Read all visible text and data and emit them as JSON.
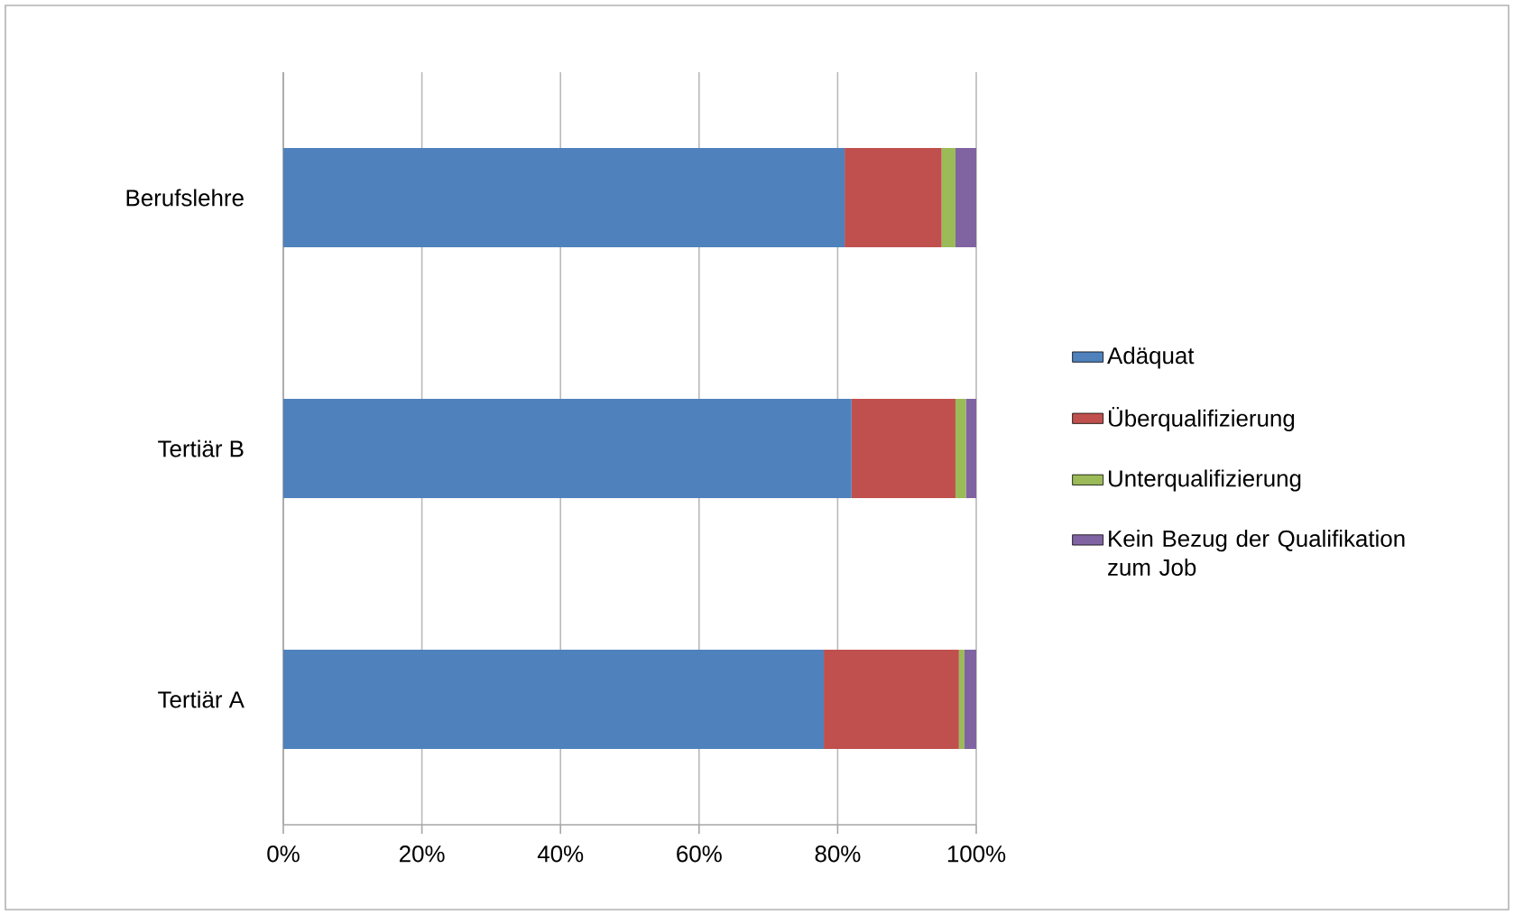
{
  "chart_data": {
    "type": "bar",
    "orientation": "horizontal",
    "stacked": true,
    "categories": [
      "Berufslehre",
      "Tertiär B",
      "Tertiär A"
    ],
    "series": [
      {
        "name": "Adäquat",
        "color": "#4f81bd",
        "values": [
          81,
          82,
          78
        ]
      },
      {
        "name": "Überqualifizierung",
        "color": "#c0504d",
        "values": [
          14,
          15,
          19.5
        ]
      },
      {
        "name": "Unterqualifizierung",
        "color": "#9bbb59",
        "values": [
          2,
          1.5,
          0.8
        ]
      },
      {
        "name": "Kein Bezug der Qualifikation zum Job",
        "color": "#8064a2",
        "values": [
          3,
          1.5,
          1.7
        ]
      }
    ],
    "xlim": [
      0,
      100
    ],
    "xticks": [
      {
        "value": 0,
        "label": "0%"
      },
      {
        "value": 20,
        "label": "20%"
      },
      {
        "value": 40,
        "label": "40%"
      },
      {
        "value": 60,
        "label": "60%"
      },
      {
        "value": 80,
        "label": "80%"
      },
      {
        "value": 100,
        "label": "100%"
      }
    ],
    "grid": "x",
    "legend": "right"
  }
}
